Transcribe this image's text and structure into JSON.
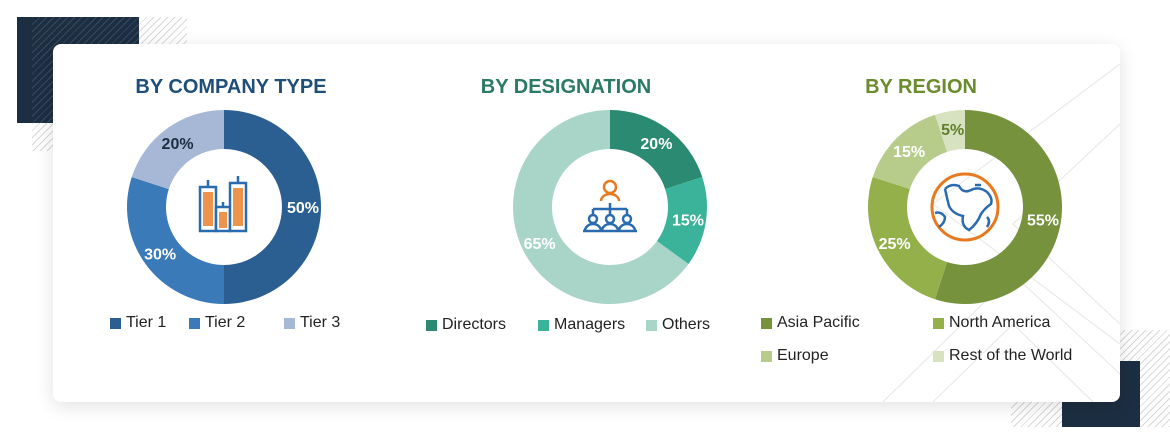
{
  "chart_data": [
    {
      "type": "pie",
      "title": "BY COMPANY TYPE",
      "title_color": "#1f4e79",
      "center_icon": "buildings-icon",
      "categories": [
        "Tier 1",
        "Tier 2",
        "Tier 3"
      ],
      "values": [
        50,
        30,
        20
      ],
      "labels": [
        "50%",
        "30%",
        "20%"
      ],
      "colors": [
        "#2b5f91",
        "#3a7ab8",
        "#a6b8d6"
      ],
      "label_colors": [
        "#ffffff",
        "#ffffff",
        "#1c2e42"
      ],
      "legend": "bottom"
    },
    {
      "type": "pie",
      "title": "BY DESIGNATION",
      "title_color": "#2a7a66",
      "center_icon": "team-hierarchy-icon",
      "categories": [
        "Directors",
        "Managers",
        "Others"
      ],
      "values": [
        20,
        15,
        65
      ],
      "labels": [
        "20%",
        "15%",
        "65%"
      ],
      "colors": [
        "#2a8a72",
        "#3bb39a",
        "#a8d5c8"
      ],
      "label_colors": [
        "#ffffff",
        "#ffffff",
        "#ffffff"
      ],
      "legend": "bottom"
    },
    {
      "type": "pie",
      "title": "BY REGION",
      "title_color": "#6a8c2c",
      "center_icon": "globe-icon",
      "categories": [
        "Asia Pacific",
        "North America",
        "Europe",
        "Rest of the World"
      ],
      "values": [
        55,
        25,
        15,
        5
      ],
      "labels": [
        "55%",
        "25%",
        "15%",
        "5%"
      ],
      "colors": [
        "#76923c",
        "#93b04a",
        "#b7cc8a",
        "#d6e2c0"
      ],
      "label_colors": [
        "#ffffff",
        "#ffffff",
        "#ffffff",
        "#5f7f2a"
      ],
      "legend": "bottom"
    }
  ]
}
